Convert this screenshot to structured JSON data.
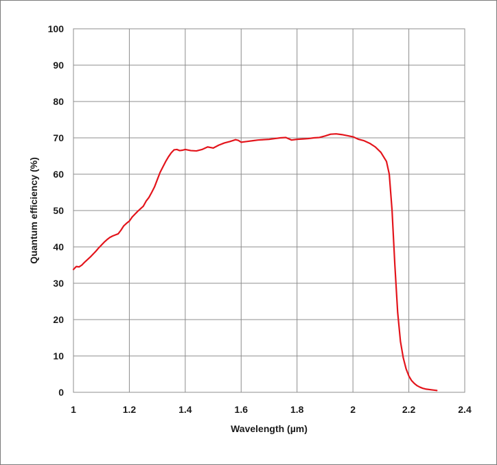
{
  "chart_data": {
    "type": "line",
    "title": "",
    "xlabel": "Wavelength (µm)",
    "ylabel": "Quantum efficiency (%)",
    "xlim": [
      1,
      2.4
    ],
    "ylim": [
      0,
      100
    ],
    "x_ticks": [
      1,
      1.2,
      1.4,
      1.6,
      1.8,
      2,
      2.2,
      2.4
    ],
    "x_tick_labels": [
      "1",
      "1.2",
      "1.4",
      "1.6",
      "1.8",
      "2",
      "2.2",
      "2.4"
    ],
    "y_ticks": [
      0,
      10,
      20,
      30,
      40,
      50,
      60,
      70,
      80,
      90,
      100
    ],
    "y_tick_labels": [
      "0",
      "10",
      "20",
      "30",
      "40",
      "50",
      "60",
      "70",
      "80",
      "90",
      "100"
    ],
    "grid": true,
    "legend": "none",
    "line_color": "#e3141b",
    "series": [
      {
        "x": [
          1.0,
          1.01,
          1.02,
          1.03,
          1.04,
          1.05,
          1.06,
          1.07,
          1.08,
          1.09,
          1.1,
          1.11,
          1.12,
          1.13,
          1.14,
          1.15,
          1.16,
          1.17,
          1.18,
          1.19,
          1.2,
          1.21,
          1.22,
          1.23,
          1.24,
          1.25,
          1.26,
          1.27,
          1.28,
          1.29,
          1.3,
          1.31,
          1.32,
          1.33,
          1.34,
          1.35,
          1.36,
          1.37,
          1.38,
          1.39,
          1.4,
          1.42,
          1.44,
          1.46,
          1.48,
          1.5,
          1.52,
          1.54,
          1.56,
          1.58,
          1.59,
          1.6,
          1.62,
          1.64,
          1.66,
          1.68,
          1.7,
          1.72,
          1.74,
          1.76,
          1.78,
          1.8,
          1.82,
          1.84,
          1.86,
          1.88,
          1.9,
          1.92,
          1.94,
          1.96,
          1.98,
          2.0,
          2.02,
          2.04,
          2.06,
          2.08,
          2.1,
          2.12,
          2.13,
          2.14,
          2.15,
          2.16,
          2.17,
          2.18,
          2.19,
          2.2,
          2.21,
          2.22,
          2.23,
          2.24,
          2.25,
          2.26,
          2.28,
          2.3
        ],
        "y": [
          33.8,
          34.6,
          34.5,
          35.0,
          35.8,
          36.5,
          37.2,
          38.0,
          38.8,
          39.7,
          40.5,
          41.3,
          42.0,
          42.6,
          43.0,
          43.3,
          43.6,
          44.6,
          45.8,
          46.5,
          47.1,
          48.2,
          49.0,
          49.8,
          50.5,
          51.2,
          52.6,
          53.6,
          55.0,
          56.5,
          58.5,
          60.5,
          62.0,
          63.5,
          64.8,
          65.9,
          66.7,
          66.8,
          66.5,
          66.6,
          66.8,
          66.5,
          66.4,
          66.8,
          67.5,
          67.2,
          68.0,
          68.6,
          69.0,
          69.5,
          69.3,
          68.8,
          69.0,
          69.2,
          69.4,
          69.5,
          69.6,
          69.8,
          70.0,
          70.1,
          69.4,
          69.6,
          69.7,
          69.8,
          70.0,
          70.1,
          70.5,
          71.0,
          71.1,
          70.9,
          70.6,
          70.3,
          69.6,
          69.2,
          68.5,
          67.5,
          66.0,
          63.5,
          60.0,
          50.0,
          35.0,
          22.0,
          14.0,
          9.5,
          6.5,
          4.5,
          3.2,
          2.4,
          1.8,
          1.4,
          1.1,
          0.9,
          0.7,
          0.5
        ]
      }
    ]
  }
}
